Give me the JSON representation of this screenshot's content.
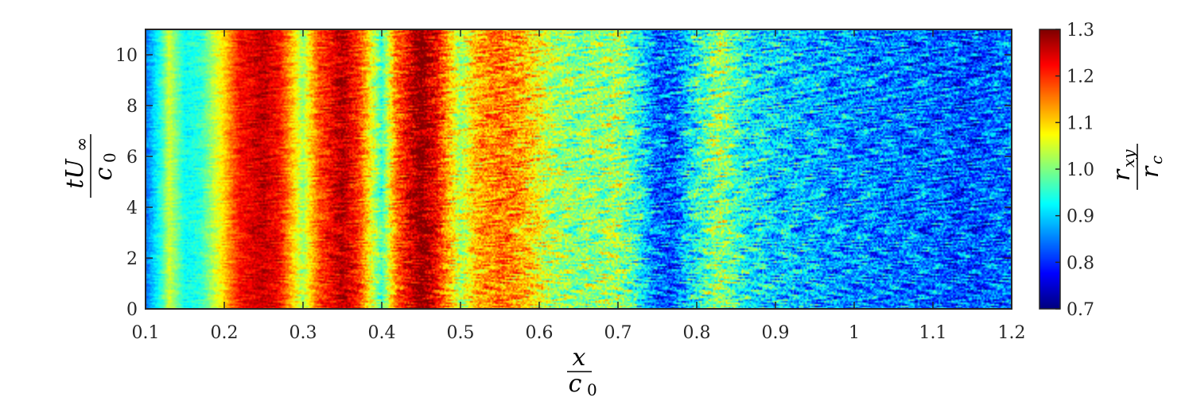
{
  "chart_data": {
    "type": "heatmap",
    "title": "",
    "xlabel": {
      "num": "x",
      "den": "c",
      "den_sub": "0"
    },
    "ylabel": {
      "num_main": "tU",
      "num_sub": "∞",
      "den": "c",
      "den_sub": "0"
    },
    "colorbar_label": {
      "num_main": "r",
      "num_sub": "xy",
      "den": "r",
      "den_sub": "c"
    },
    "xlim": [
      0.1,
      1.2
    ],
    "ylim": [
      0,
      11
    ],
    "clim": [
      0.7,
      1.3
    ],
    "colormap": "jet",
    "x_ticks": [
      0.1,
      0.2,
      0.3,
      0.4,
      0.5,
      0.6,
      0.7,
      0.8,
      0.9,
      1.0,
      1.1,
      1.2
    ],
    "x_tick_labels": [
      "0.1",
      "0.2",
      "0.3",
      "0.4",
      "0.5",
      "0.6",
      "0.7",
      "0.8",
      "0.9",
      "1",
      "1.1",
      "1.2"
    ],
    "y_ticks": [
      0,
      2,
      4,
      6,
      8,
      10
    ],
    "y_tick_labels": [
      "0",
      "2",
      "4",
      "6",
      "8",
      "10"
    ],
    "colorbar_ticks": [
      0.7,
      0.8,
      0.9,
      1.0,
      1.1,
      1.2,
      1.3
    ],
    "colorbar_tick_labels": [
      "0.7",
      "0.8",
      "0.9",
      "1.0",
      "1.1",
      "1.2",
      "1.3"
    ],
    "mean_profile": {
      "x": [
        0.1,
        0.12,
        0.13,
        0.15,
        0.17,
        0.2,
        0.22,
        0.25,
        0.27,
        0.3,
        0.32,
        0.35,
        0.37,
        0.4,
        0.42,
        0.45,
        0.47,
        0.5,
        0.52,
        0.55,
        0.58,
        0.62,
        0.65,
        0.7,
        0.72,
        0.75,
        0.77,
        0.8,
        0.83,
        0.86,
        0.9,
        0.95,
        1.0,
        1.05,
        1.1,
        1.15,
        1.2
      ],
      "value": [
        0.84,
        0.95,
        1.05,
        0.93,
        0.95,
        1.1,
        1.22,
        1.26,
        1.22,
        1.02,
        1.18,
        1.27,
        1.2,
        0.96,
        1.17,
        1.3,
        1.22,
        1.02,
        1.12,
        1.16,
        1.12,
        1.02,
        1.0,
        1.02,
        0.96,
        0.84,
        0.83,
        0.94,
        1.02,
        0.93,
        0.9,
        0.88,
        0.86,
        0.85,
        0.84,
        0.82,
        0.85
      ]
    },
    "grid": false
  }
}
